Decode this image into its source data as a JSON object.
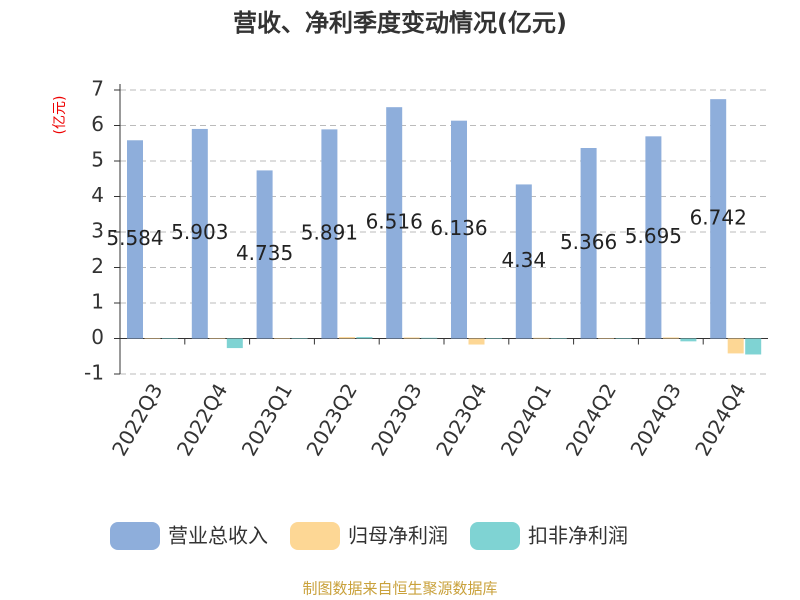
{
  "chart_data": {
    "type": "bar",
    "title": "营收、净利季度变动情况(亿元)",
    "y_label": "(亿元)",
    "categories": [
      "2022Q3",
      "2022Q4",
      "2023Q1",
      "2023Q2",
      "2023Q3",
      "2023Q4",
      "2024Q1",
      "2024Q2",
      "2024Q3",
      "2024Q4"
    ],
    "series": [
      {
        "name": "营业总收入",
        "color": "#8eaedb",
        "values": [
          5.584,
          5.903,
          4.735,
          5.891,
          6.516,
          6.136,
          4.34,
          5.366,
          5.695,
          6.742
        ]
      },
      {
        "name": "归母净利润",
        "color": "#fdd795",
        "values": [
          0.01,
          0.01,
          0.01,
          0.04,
          0.03,
          -0.17,
          0.02,
          0.01,
          0.03,
          -0.42
        ]
      },
      {
        "name": "扣非净利润",
        "color": "#7fd3d3",
        "values": [
          0.01,
          -0.27,
          0.01,
          0.04,
          0.02,
          0.01,
          0.01,
          0.01,
          -0.08,
          -0.45
        ]
      }
    ],
    "ylim": [
      -1,
      7
    ],
    "yticks": [
      -1,
      0,
      1,
      2,
      3,
      4,
      5,
      6,
      7
    ],
    "grid": true,
    "source": "制图数据来自恒生聚源数据库"
  }
}
